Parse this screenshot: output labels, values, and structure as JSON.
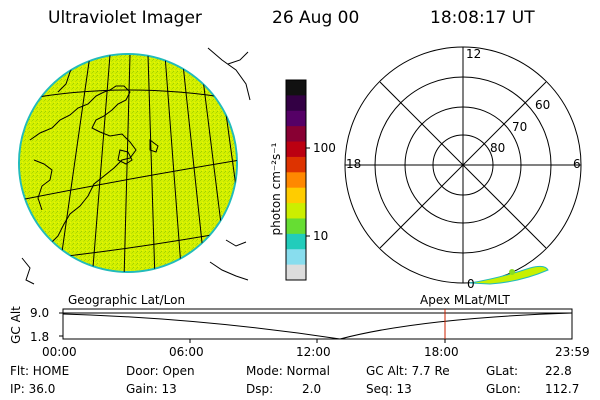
{
  "header": {
    "instrument": "Ultraviolet Imager",
    "date": "26 Aug 00",
    "time": "18:08:17 UT"
  },
  "geo_map": {
    "label": "Geographic Lat/Lon",
    "fill_color": "#d4f000"
  },
  "colorbar": {
    "unit": "photon cm⁻²s⁻¹",
    "ticks": [
      "100",
      "10"
    ],
    "colors": [
      "#111111",
      "#330044",
      "#550066",
      "#880033",
      "#bb0011",
      "#dd3300",
      "#ff8800",
      "#ffcc00",
      "#ccee00",
      "#66dd33",
      "#22ccbb",
      "#88ddee",
      "#dddddd"
    ]
  },
  "polar_plot": {
    "label": "Apex MLat/MLT",
    "mlt_labels": {
      "top": "12",
      "left": "18",
      "right": "6",
      "bottom": "0"
    },
    "lat_labels": [
      "60",
      "70",
      "80"
    ]
  },
  "altitude_plot": {
    "ylabel": "GC Alt",
    "yticks": [
      "9.0",
      "1.8"
    ],
    "xticks": [
      "00:00",
      "06:00",
      "12:00",
      "18:00",
      "23:59"
    ],
    "marker_color": "#cc2200"
  },
  "status": {
    "flt": "Flt: HOME",
    "ip": "IP: 36.0",
    "door": "Door: Open",
    "gain": "Gain: 13",
    "mode": "Mode: Normal",
    "dsp_label": "Dsp:",
    "dsp_value": "2.0",
    "gc_alt": "GC Alt: 7.7 Re",
    "seq": "Seq: 13",
    "glat_label": "GLat:",
    "glat_value": "22.8",
    "glon_label": "GLon:",
    "glon_value": "112.7"
  }
}
